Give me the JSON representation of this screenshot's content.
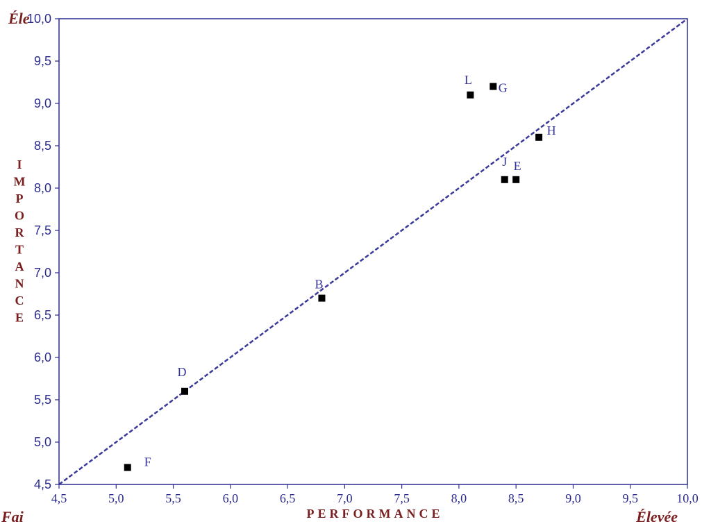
{
  "chart_data": {
    "type": "scatter",
    "xlim": [
      4.5,
      10.0
    ],
    "ylim": [
      4.5,
      10.0
    ],
    "x_ticks": [
      "4,5",
      "5,0",
      "5,5",
      "6,0",
      "6,5",
      "7,0",
      "7,5",
      "8,0",
      "8,5",
      "9,0",
      "9,5",
      "10,0"
    ],
    "y_ticks": [
      "4,5",
      "5,0",
      "5,5",
      "6,0",
      "6,5",
      "7,0",
      "7,5",
      "8,0",
      "8,5",
      "9,0",
      "9,5",
      "10,0"
    ],
    "xlabel": "PERFORMANCE",
    "ylabel": "IMPORTANCE",
    "corner_labels": {
      "x_low": "Fai",
      "x_high": "Élevée",
      "y_high": "Éle"
    },
    "points": [
      {
        "label": "F",
        "x": 5.1,
        "y": 4.7
      },
      {
        "label": "D",
        "x": 5.6,
        "y": 5.6
      },
      {
        "label": "B",
        "x": 6.8,
        "y": 6.7
      },
      {
        "label": "L",
        "x": 8.1,
        "y": 9.1
      },
      {
        "label": "G",
        "x": 8.3,
        "y": 9.2
      },
      {
        "label": "H",
        "x": 8.7,
        "y": 8.6
      },
      {
        "label": "J",
        "x": 8.4,
        "y": 8.1
      },
      {
        "label": "E",
        "x": 8.5,
        "y": 8.1
      }
    ],
    "reference_line": {
      "from": [
        4.5,
        4.5
      ],
      "to": [
        10.0,
        10.0
      ],
      "style": "dashed"
    },
    "grid": false,
    "colors": {
      "axis": "#2b2b8f",
      "marker": "#000000",
      "point_label": "#33339a",
      "axis_title": "#7a1f1f",
      "reference_line": "#3a3a9a"
    }
  }
}
